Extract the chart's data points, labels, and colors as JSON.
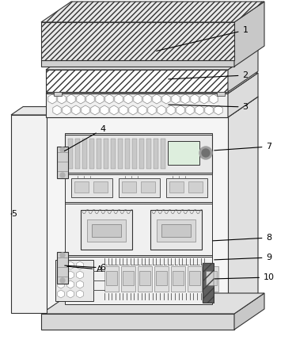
{
  "bg_color": "#ffffff",
  "lc": "#333333",
  "gray1": "#f0f0f0",
  "gray2": "#e0e0e0",
  "gray3": "#d0d0d0",
  "gray4": "#c0c0c0",
  "gray5": "#a0a0a0",
  "dark": "#505050",
  "hatch_fc": "#ffffff",
  "solar_top_fc": "#e8e8e8",
  "solar_front_fc": "#d8d8d8",
  "layer2_fc": "#ffffff",
  "layer3_fc": "#f5f5f5",
  "right_side_fc": "#e4e4e4",
  "door_fc": "#f8f8f8",
  "inner_fc": "#f2f2f2",
  "dark_panel_fc": "#707070"
}
